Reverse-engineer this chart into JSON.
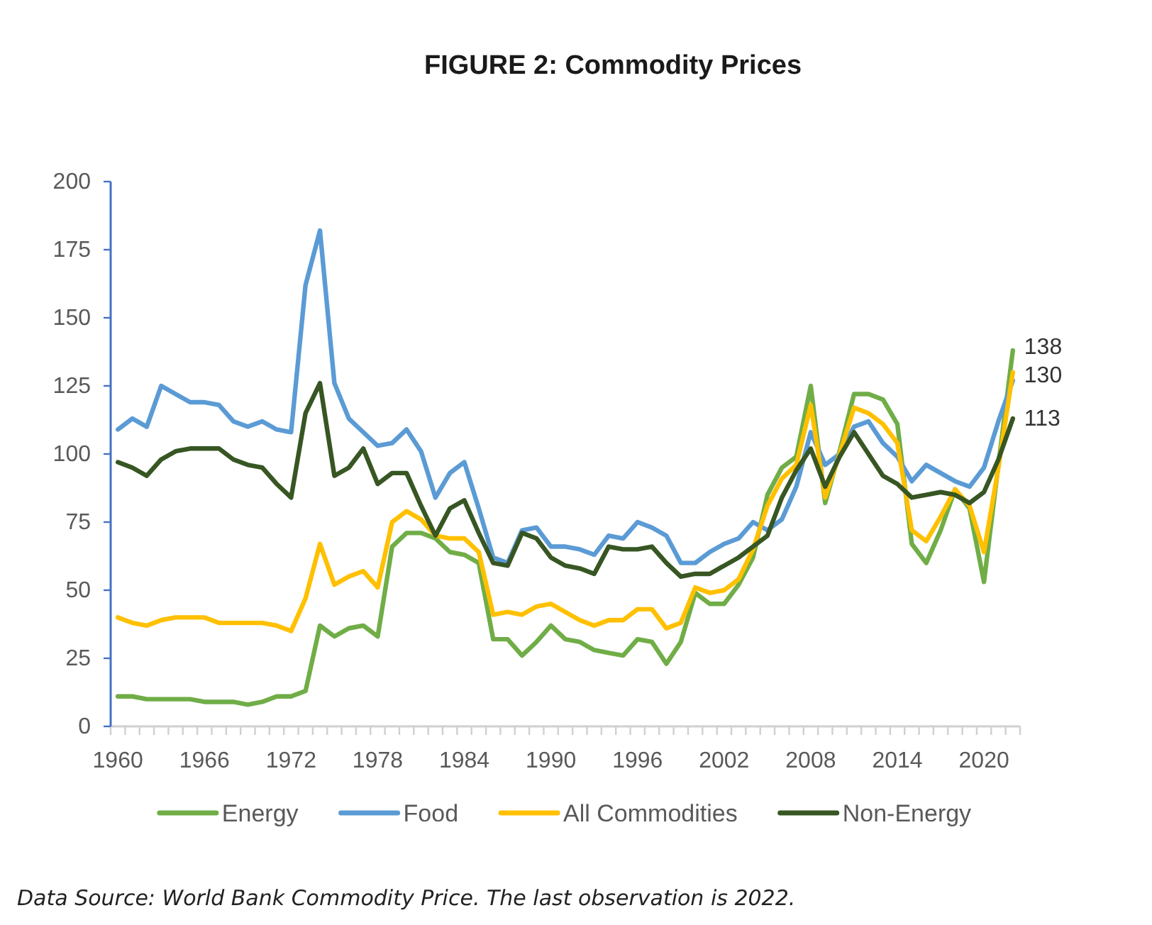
{
  "chart_data": {
    "type": "line",
    "title": "FIGURE 2: Commodity Prices",
    "categories": [
      "1960",
      null,
      null,
      null,
      null,
      null,
      "1966",
      null,
      null,
      null,
      null,
      null,
      "1972",
      null,
      null,
      null,
      null,
      null,
      "1978",
      null,
      null,
      null,
      null,
      null,
      "1984",
      null,
      null,
      null,
      null,
      null,
      "1990",
      null,
      null,
      null,
      null,
      null,
      "1996",
      null,
      null,
      null,
      null,
      null,
      "2002",
      null,
      null,
      null,
      null,
      null,
      "2008",
      null,
      null,
      null,
      null,
      null,
      "2014",
      null,
      null,
      null,
      null,
      null,
      "2020",
      null,
      null
    ],
    "ylim": [
      0,
      200
    ],
    "yticks": [
      0,
      25,
      50,
      75,
      100,
      125,
      150,
      175,
      200
    ],
    "legend": "bottom",
    "annotations": [
      "Data Source: World Bank Commodity Price. The last observation is 2022."
    ],
    "series": [
      {
        "name": "Energy",
        "color": "#70ad47",
        "values": [
          11,
          11,
          10,
          10,
          10,
          10,
          9,
          9,
          9,
          8,
          9,
          11,
          11,
          13,
          37,
          33,
          36,
          37,
          33,
          66,
          71,
          71,
          69,
          64,
          63,
          60,
          32,
          32,
          26,
          31,
          37,
          32,
          31,
          28,
          27,
          26,
          32,
          31,
          23,
          31,
          49,
          45,
          45,
          52,
          62,
          85,
          95,
          99,
          125,
          82,
          101,
          122,
          122,
          120,
          111,
          67,
          60,
          72,
          87,
          80,
          53,
          96,
          138
        ],
        "value_labels": [
          null,
          null,
          null,
          null,
          null,
          null,
          null,
          null,
          null,
          null,
          null,
          null,
          null,
          null,
          null,
          null,
          null,
          null,
          null,
          null,
          null,
          null,
          null,
          null,
          null,
          null,
          null,
          null,
          null,
          null,
          null,
          null,
          null,
          null,
          null,
          null,
          null,
          null,
          null,
          null,
          null,
          null,
          null,
          null,
          null,
          null,
          null,
          null,
          null,
          null,
          null,
          null,
          null,
          null,
          null,
          null,
          null,
          null,
          null,
          null,
          null,
          null,
          "138"
        ]
      },
      {
        "name": "Food",
        "color": "#5b9bd5",
        "values": [
          109,
          113,
          110,
          125,
          122,
          119,
          119,
          118,
          112,
          110,
          112,
          109,
          108,
          162,
          182,
          126,
          113,
          108,
          103,
          104,
          109,
          101,
          84,
          93,
          97,
          80,
          62,
          60,
          72,
          73,
          66,
          66,
          65,
          63,
          70,
          69,
          75,
          73,
          70,
          60,
          60,
          64,
          67,
          69,
          75,
          72,
          76,
          88,
          108,
          96,
          100,
          110,
          112,
          104,
          99,
          90,
          96,
          93,
          90,
          88,
          95,
          112,
          127
        ]
      },
      {
        "name": "All Commodities",
        "color": "#ffc000",
        "values": [
          40,
          38,
          37,
          39,
          40,
          40,
          40,
          38,
          38,
          38,
          38,
          37,
          35,
          47,
          67,
          52,
          55,
          57,
          51,
          75,
          79,
          76,
          70,
          69,
          69,
          64,
          41,
          42,
          41,
          44,
          45,
          42,
          39,
          37,
          39,
          39,
          43,
          43,
          36,
          38,
          51,
          49,
          50,
          54,
          65,
          81,
          91,
          96,
          118,
          84,
          100,
          117,
          115,
          111,
          104,
          72,
          68,
          77,
          87,
          81,
          64,
          95,
          130
        ],
        "value_labels": [
          null,
          null,
          null,
          null,
          null,
          null,
          null,
          null,
          null,
          null,
          null,
          null,
          null,
          null,
          null,
          null,
          null,
          null,
          null,
          null,
          null,
          null,
          null,
          null,
          null,
          null,
          null,
          null,
          null,
          null,
          null,
          null,
          null,
          null,
          null,
          null,
          null,
          null,
          null,
          null,
          null,
          null,
          null,
          null,
          null,
          null,
          null,
          null,
          null,
          null,
          null,
          null,
          null,
          null,
          null,
          null,
          null,
          null,
          null,
          null,
          null,
          null,
          "130"
        ]
      },
      {
        "name": "Non-Energy",
        "color": "#375623",
        "values": [
          97,
          95,
          92,
          98,
          101,
          102,
          102,
          102,
          98,
          96,
          95,
          89,
          84,
          115,
          126,
          92,
          95,
          102,
          89,
          93,
          93,
          81,
          70,
          80,
          83,
          71,
          60,
          59,
          71,
          69,
          62,
          59,
          58,
          56,
          66,
          65,
          65,
          66,
          60,
          55,
          56,
          56,
          59,
          62,
          66,
          70,
          84,
          94,
          102,
          88,
          99,
          108,
          100,
          92,
          89,
          84,
          85,
          86,
          85,
          82,
          86,
          98,
          113
        ],
        "value_labels": [
          null,
          null,
          null,
          null,
          null,
          null,
          null,
          null,
          null,
          null,
          null,
          null,
          null,
          null,
          null,
          null,
          null,
          null,
          null,
          null,
          null,
          null,
          null,
          null,
          null,
          null,
          null,
          null,
          null,
          null,
          null,
          null,
          null,
          null,
          null,
          null,
          null,
          null,
          null,
          null,
          null,
          null,
          null,
          null,
          null,
          null,
          null,
          null,
          null,
          null,
          null,
          null,
          null,
          null,
          null,
          null,
          null,
          null,
          null,
          null,
          null,
          null,
          "113"
        ]
      }
    ]
  }
}
